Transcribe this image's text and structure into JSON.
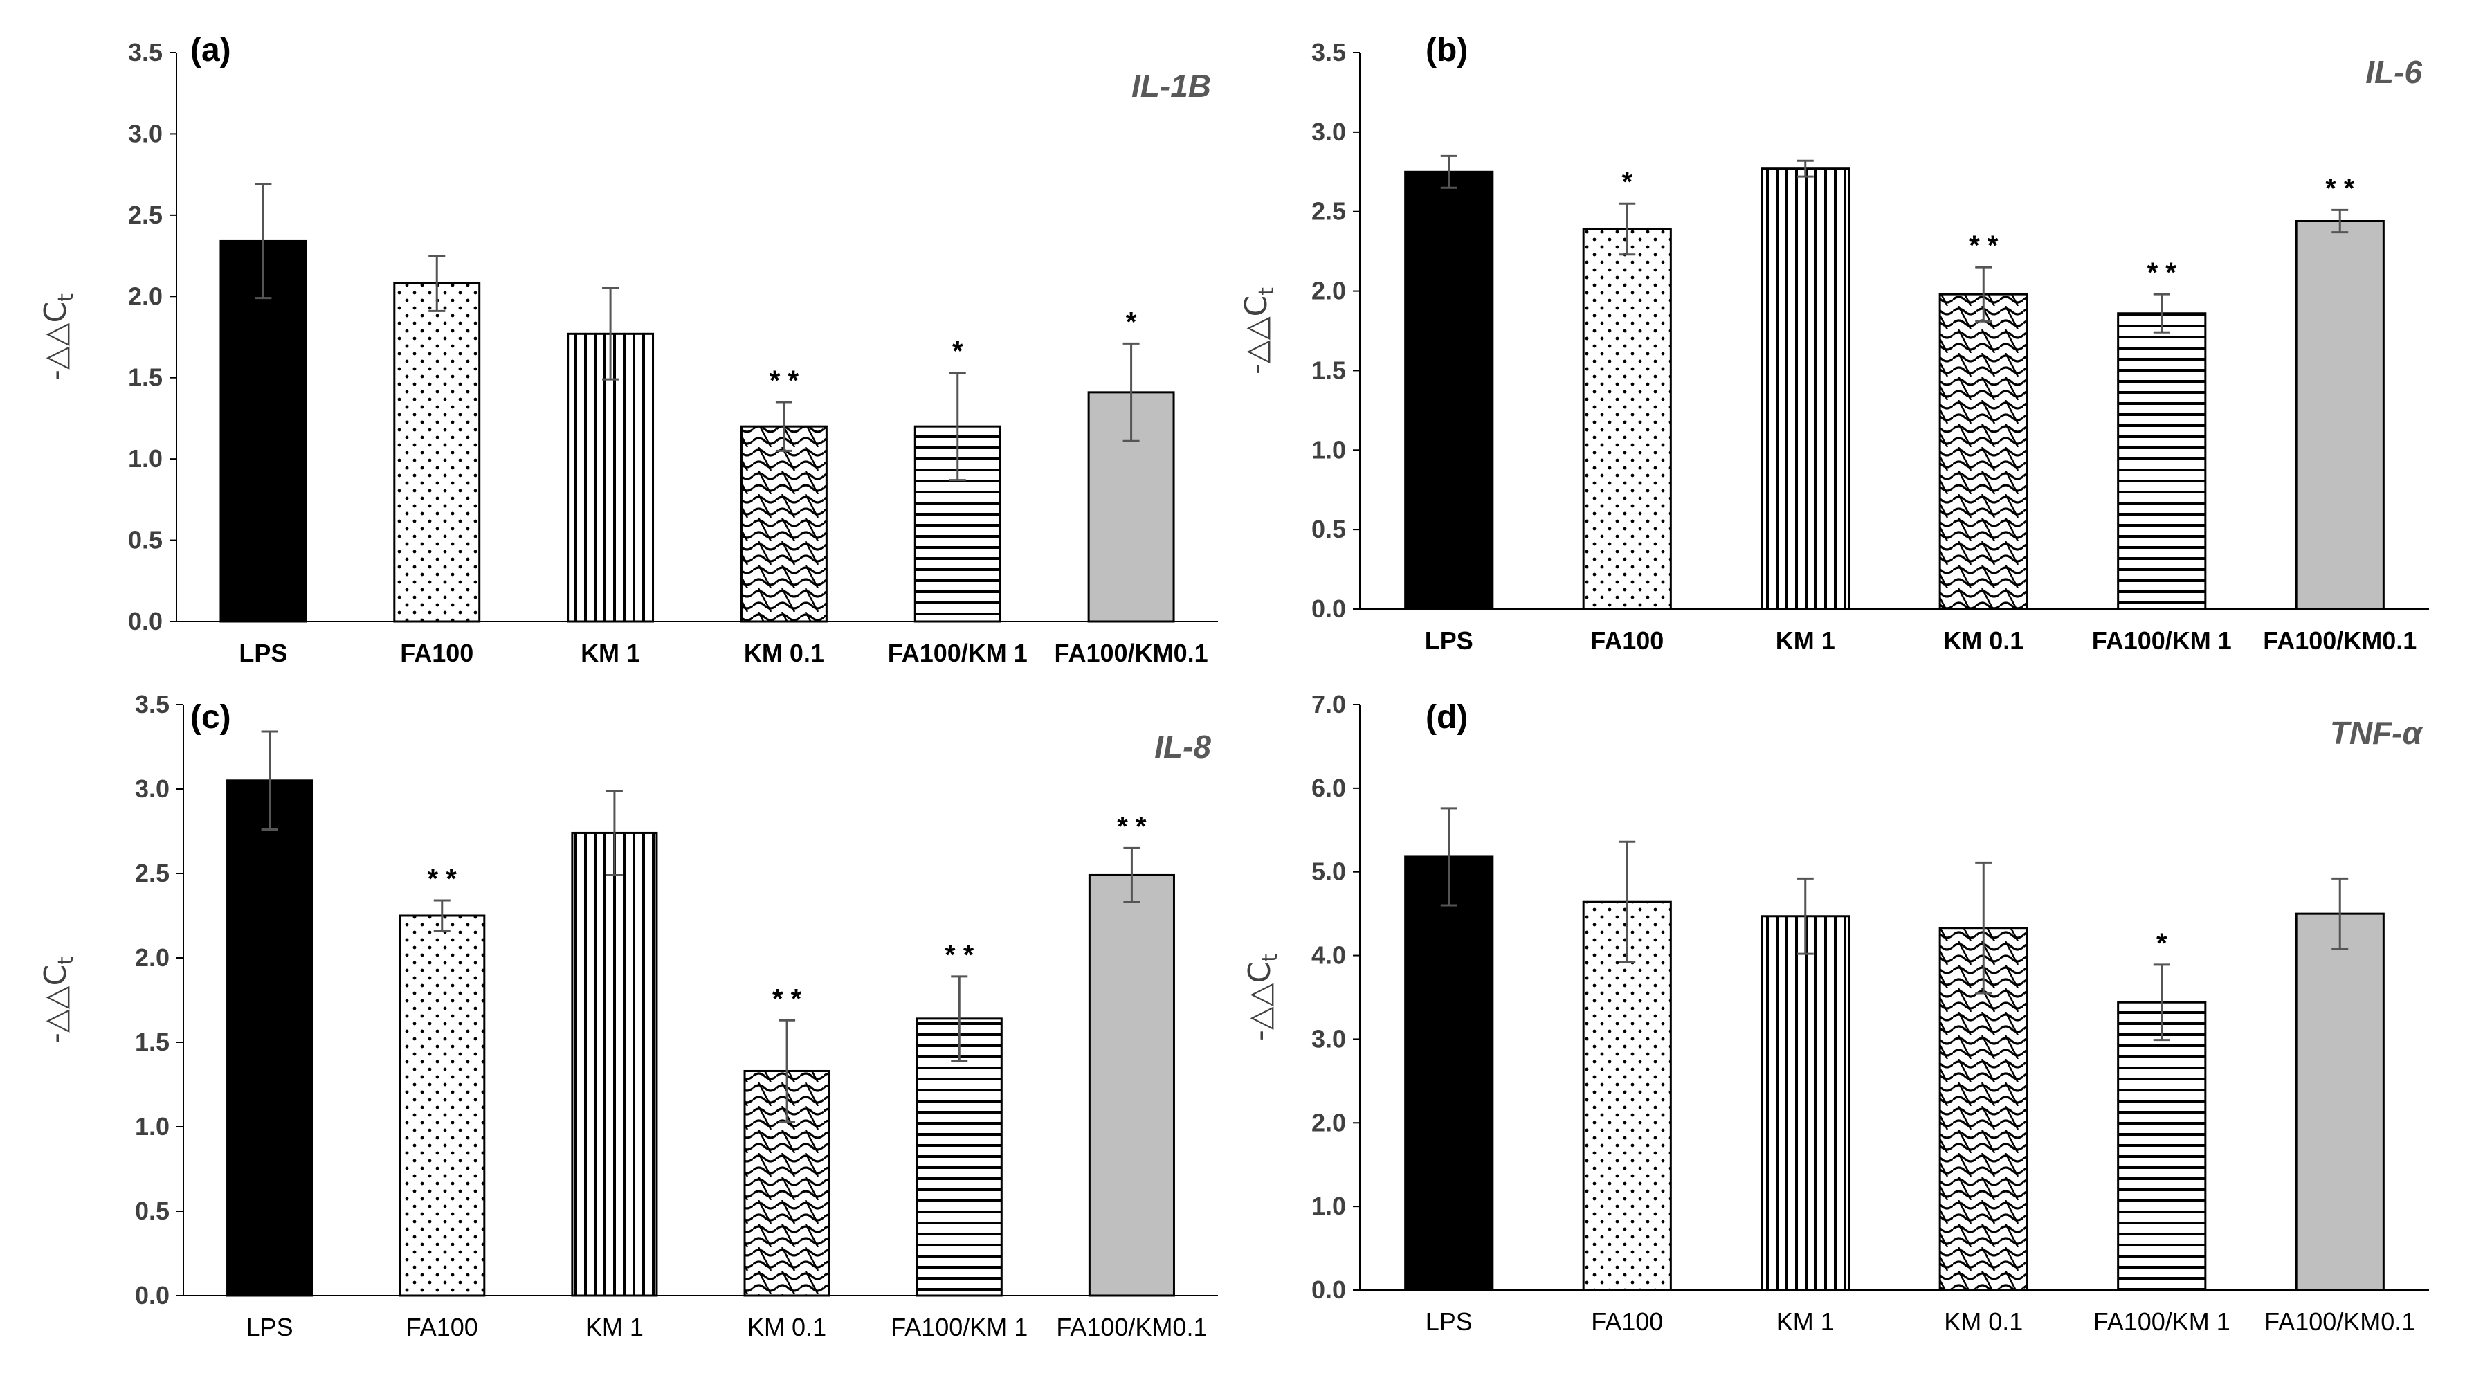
{
  "figure": {
    "ylabel_main": "-△△C",
    "ylabel_sub": "t"
  },
  "chart_data": [
    {
      "type": "bar",
      "panel": "(a)",
      "title": "IL-1B",
      "categories": [
        "LPS",
        "FA100",
        "KM 1",
        "KM 0.1",
        "FA100/KM 1",
        "FA100/KM0.1"
      ],
      "values": [
        2.34,
        2.08,
        1.77,
        1.2,
        1.2,
        1.41
      ],
      "errors": [
        0.35,
        0.17,
        0.28,
        0.15,
        0.33,
        0.3
      ],
      "significance": [
        "",
        "",
        "",
        "* *",
        "*",
        "*"
      ],
      "patterns": [
        "solid",
        "dots",
        "vlines",
        "wave",
        "hlines",
        "gray"
      ],
      "xlabel": "",
      "ylabel": "-△△Ct",
      "ylim": [
        0,
        3.5
      ],
      "yticks": [
        "0.0",
        "0.5",
        "1.0",
        "1.5",
        "2.0",
        "2.5",
        "3.0",
        "3.5"
      ],
      "bold_ticks": true
    },
    {
      "type": "bar",
      "panel": "(b)",
      "title": "IL-6",
      "categories": [
        "LPS",
        "FA100",
        "KM 1",
        "KM 0.1",
        "FA100/KM 1",
        "FA100/KM0.1"
      ],
      "values": [
        2.75,
        2.39,
        2.77,
        1.98,
        1.86,
        2.44
      ],
      "errors": [
        0.1,
        0.16,
        0.05,
        0.17,
        0.12,
        0.07
      ],
      "significance": [
        "",
        "*",
        "",
        "* *",
        "* *",
        "* *"
      ],
      "patterns": [
        "solid",
        "dots",
        "vlines",
        "wave",
        "hlines",
        "gray"
      ],
      "xlabel": "",
      "ylabel": "-△△Ct",
      "ylim": [
        0,
        3.5
      ],
      "yticks": [
        "0.0",
        "0.5",
        "1.0",
        "1.5",
        "2.0",
        "2.5",
        "3.0",
        "3.5"
      ],
      "bold_ticks": true
    },
    {
      "type": "bar",
      "panel": "(c)",
      "title": "IL-8",
      "categories": [
        "LPS",
        "FA100",
        "KM 1",
        "KM 0.1",
        "FA100/KM 1",
        "FA100/KM0.1"
      ],
      "values": [
        3.05,
        2.25,
        2.74,
        1.33,
        1.64,
        2.49
      ],
      "errors": [
        0.29,
        0.09,
        0.25,
        0.3,
        0.25,
        0.16
      ],
      "significance": [
        "",
        "* *",
        "",
        "* *",
        "* *",
        "* *"
      ],
      "patterns": [
        "solid",
        "dots",
        "vlines",
        "wave",
        "hlines",
        "gray"
      ],
      "xlabel": "",
      "ylabel": "-△△Ct",
      "ylim": [
        0,
        3.5
      ],
      "yticks": [
        "0.0",
        "0.5",
        "1.0",
        "1.5",
        "2.0",
        "2.5",
        "3.0",
        "3.5"
      ],
      "bold_ticks": false
    },
    {
      "type": "bar",
      "panel": "(d)",
      "title": "TNF-α",
      "categories": [
        "LPS",
        "FA100",
        "KM 1",
        "KM 0.1",
        "FA100/KM 1",
        "FA100/KM0.1"
      ],
      "values": [
        5.18,
        4.64,
        4.47,
        4.33,
        3.44,
        4.5
      ],
      "errors": [
        0.58,
        0.72,
        0.45,
        0.78,
        0.45,
        0.42
      ],
      "significance": [
        "",
        "",
        "",
        "",
        "*",
        ""
      ],
      "patterns": [
        "solid",
        "dots",
        "vlines",
        "wave",
        "hlines",
        "gray"
      ],
      "xlabel": "",
      "ylabel": "-△△Ct",
      "ylim": [
        0,
        7.0
      ],
      "yticks": [
        "0.0",
        "1.0",
        "2.0",
        "3.0",
        "4.0",
        "5.0",
        "6.0",
        "7.0"
      ],
      "bold_ticks": false
    }
  ]
}
